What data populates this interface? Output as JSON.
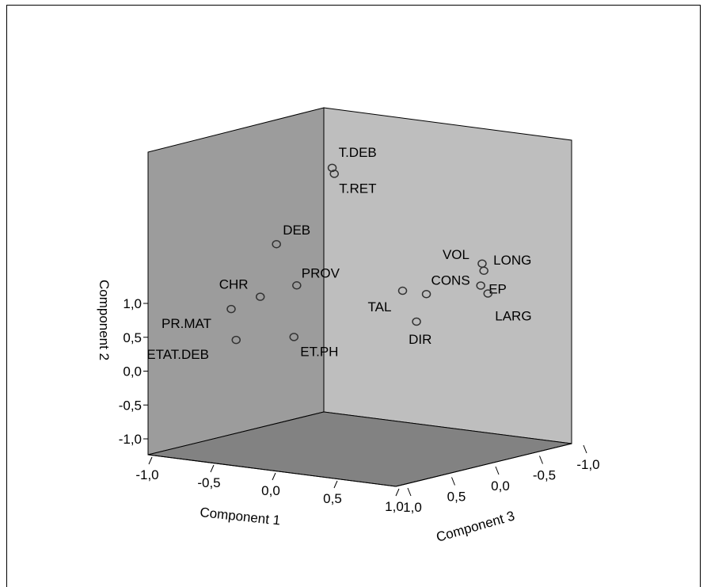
{
  "chart_data": {
    "type": "scatter",
    "projection": "3d",
    "xlabel": "Component 1",
    "ylabel": "Component 2",
    "zlabel": "Component 3",
    "xlim": [
      -1.0,
      1.0
    ],
    "ylim": [
      -1.0,
      1.0
    ],
    "zlim": [
      -1.0,
      1.0
    ],
    "x_ticks": [
      "-1,0",
      "-0,5",
      "0,0",
      "0,5",
      "1,0"
    ],
    "y_ticks": [
      "1,0",
      "0,5",
      "0,0",
      "-0,5",
      "-1,0"
    ],
    "z_ticks": [
      "1,0",
      "0,5",
      "0,0",
      "-0,5",
      "-1,0"
    ],
    "grid": false,
    "legend": "none",
    "points": [
      {
        "label": "T.DEB",
        "x": 0.15,
        "y": 0.95,
        "z": 0.53
      },
      {
        "label": "T.RET",
        "x": 0.16,
        "y": 0.91,
        "z": 0.52
      },
      {
        "label": "DEB",
        "x": -0.23,
        "y": 0.42,
        "z": 0.63
      },
      {
        "label": "PROV",
        "x": -0.08,
        "y": 0.16,
        "z": 0.61
      },
      {
        "label": "CHR",
        "x": -0.29,
        "y": 0.08,
        "z": 0.73
      },
      {
        "label": "PR.MAT",
        "x": -0.44,
        "y": 0.0,
        "z": 0.85
      },
      {
        "label": "ETAT.DEB",
        "x": -0.4,
        "y": -0.2,
        "z": 0.85
      },
      {
        "label": "ET.PH",
        "x": -0.06,
        "y": -0.17,
        "z": 0.67
      },
      {
        "label": "TAL",
        "x": 0.4,
        "y": 0.1,
        "z": 0.08
      },
      {
        "label": "DIR",
        "x": 0.42,
        "y": -0.12,
        "z": -0.05
      },
      {
        "label": "CONS",
        "x": 0.5,
        "y": 0.07,
        "z": -0.05
      },
      {
        "label": "VOL",
        "x": 0.56,
        "y": 0.2,
        "z": -0.6
      },
      {
        "label": "LONG",
        "x": 0.56,
        "y": 0.15,
        "z": -0.62
      },
      {
        "label": "EP",
        "x": 0.57,
        "y": 0.06,
        "z": -0.57
      },
      {
        "label": "LARG",
        "x": 0.55,
        "y": -0.01,
        "z": -0.68
      }
    ],
    "colors": {
      "left_wall": "#9c9c9c",
      "right_wall": "#bebebe",
      "floor": "#828282",
      "marker_stroke": "#333333",
      "background": "#ffffff"
    }
  }
}
